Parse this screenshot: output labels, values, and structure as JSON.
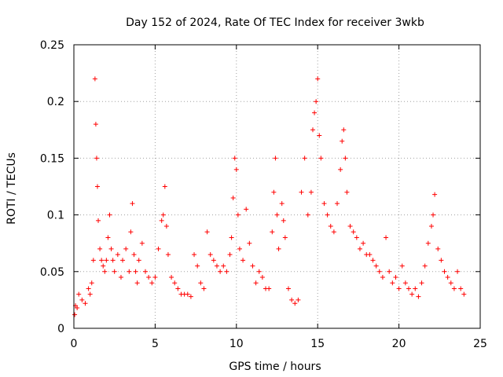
{
  "chart_data": {
    "type": "scatter",
    "title": "Day 152 of 2024, Rate Of TEC Index for receiver 3wkb",
    "xlabel": "GPS time / hours",
    "ylabel": "ROTI / TECUs",
    "xlim": [
      0,
      25
    ],
    "ylim": [
      0,
      0.25
    ],
    "x_ticks": [
      0,
      5,
      10,
      15,
      20,
      25
    ],
    "x_tick_labels": [
      "0",
      "5",
      "10",
      "15",
      "20",
      "25"
    ],
    "y_ticks": [
      0,
      0.05,
      0.1,
      0.15,
      0.2,
      0.25
    ],
    "y_tick_labels": [
      "0",
      "0.05",
      "0.1",
      "0.15",
      "0.2",
      "0.25"
    ],
    "grid": true,
    "marker": "+",
    "marker_color": "#ff0000",
    "series": [
      {
        "x": [
          0.05,
          0.1,
          0.2,
          0.3,
          0.5,
          0.7,
          0.9,
          1.0,
          1.1,
          1.2,
          1.3,
          1.35,
          1.4,
          1.45,
          1.5,
          1.6,
          1.7,
          1.8,
          1.9,
          2.0,
          2.1,
          2.2,
          2.3,
          2.4,
          2.5,
          2.7,
          2.9,
          3.0,
          3.2,
          3.4,
          3.5,
          3.6,
          3.7,
          3.8,
          3.9,
          4.0,
          4.2,
          4.4,
          4.6,
          4.8,
          5.0,
          5.2,
          5.4,
          5.5,
          5.6,
          5.7,
          5.8,
          6.0,
          6.2,
          6.4,
          6.6,
          6.8,
          7.0,
          7.2,
          7.4,
          7.6,
          7.8,
          8.0,
          8.2,
          8.4,
          8.6,
          8.8,
          9.0,
          9.2,
          9.4,
          9.6,
          9.7,
          9.8,
          9.9,
          10.0,
          10.1,
          10.2,
          10.4,
          10.6,
          10.8,
          11.0,
          11.2,
          11.4,
          11.6,
          11.8,
          12.0,
          12.2,
          12.3,
          12.4,
          12.5,
          12.6,
          12.8,
          12.9,
          13.0,
          13.2,
          13.4,
          13.6,
          13.8,
          14.0,
          14.2,
          14.4,
          14.6,
          14.7,
          14.8,
          14.9,
          15.0,
          15.1,
          15.2,
          15.4,
          15.6,
          15.8,
          16.0,
          16.2,
          16.4,
          16.5,
          16.6,
          16.7,
          16.8,
          17.0,
          17.2,
          17.4,
          17.6,
          17.8,
          18.0,
          18.2,
          18.4,
          18.6,
          18.8,
          19.0,
          19.2,
          19.4,
          19.6,
          19.8,
          20.0,
          20.2,
          20.4,
          20.6,
          20.8,
          21.0,
          21.2,
          21.4,
          21.6,
          21.8,
          22.0,
          22.1,
          22.2,
          22.4,
          22.6,
          22.8,
          23.0,
          23.2,
          23.4,
          23.6,
          23.8,
          24.0
        ],
        "y": [
          0.012,
          0.02,
          0.018,
          0.03,
          0.025,
          0.022,
          0.035,
          0.03,
          0.04,
          0.06,
          0.22,
          0.18,
          0.15,
          0.125,
          0.095,
          0.07,
          0.06,
          0.055,
          0.05,
          0.06,
          0.08,
          0.1,
          0.07,
          0.06,
          0.05,
          0.065,
          0.045,
          0.06,
          0.07,
          0.05,
          0.085,
          0.11,
          0.065,
          0.05,
          0.04,
          0.06,
          0.075,
          0.05,
          0.045,
          0.04,
          0.045,
          0.07,
          0.095,
          0.1,
          0.125,
          0.09,
          0.065,
          0.045,
          0.04,
          0.035,
          0.03,
          0.03,
          0.03,
          0.028,
          0.065,
          0.055,
          0.04,
          0.035,
          0.085,
          0.065,
          0.06,
          0.055,
          0.05,
          0.055,
          0.05,
          0.065,
          0.08,
          0.115,
          0.15,
          0.14,
          0.1,
          0.07,
          0.06,
          0.105,
          0.075,
          0.055,
          0.04,
          0.05,
          0.045,
          0.035,
          0.035,
          0.085,
          0.12,
          0.15,
          0.1,
          0.07,
          0.11,
          0.095,
          0.08,
          0.035,
          0.025,
          0.022,
          0.025,
          0.12,
          0.15,
          0.1,
          0.12,
          0.175,
          0.19,
          0.2,
          0.22,
          0.17,
          0.15,
          0.11,
          0.1,
          0.09,
          0.085,
          0.11,
          0.14,
          0.165,
          0.175,
          0.15,
          0.12,
          0.09,
          0.085,
          0.08,
          0.07,
          0.075,
          0.065,
          0.065,
          0.06,
          0.055,
          0.05,
          0.045,
          0.08,
          0.05,
          0.04,
          0.045,
          0.035,
          0.055,
          0.04,
          0.035,
          0.03,
          0.035,
          0.028,
          0.04,
          0.055,
          0.075,
          0.09,
          0.1,
          0.118,
          0.07,
          0.06,
          0.05,
          0.045,
          0.04,
          0.035,
          0.05,
          0.035,
          0.03
        ]
      }
    ]
  }
}
